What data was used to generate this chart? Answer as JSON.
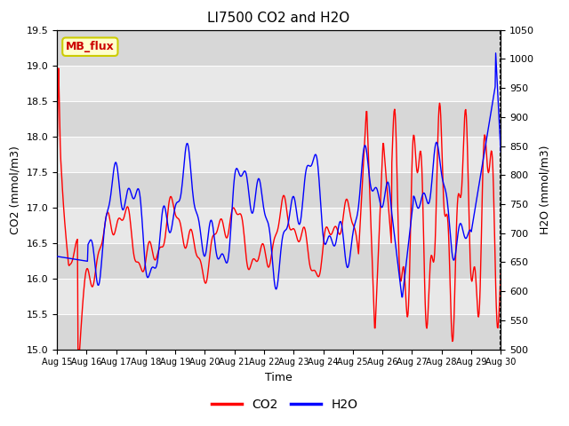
{
  "title": "LI7500 CO2 and H2O",
  "xlabel": "Time",
  "ylabel_left": "CO2 (mmol/m3)",
  "ylabel_right": "H2O (mmol/m3)",
  "ylim_left": [
    15.0,
    19.5
  ],
  "ylim_right": [
    500,
    1050
  ],
  "yticks_left": [
    15.0,
    15.5,
    16.0,
    16.5,
    17.0,
    17.5,
    18.0,
    18.5,
    19.0,
    19.5
  ],
  "yticks_right": [
    500,
    550,
    600,
    650,
    700,
    750,
    800,
    850,
    900,
    950,
    1000,
    1050
  ],
  "xtick_labels": [
    "Aug 15",
    "Aug 16",
    "Aug 17",
    "Aug 18",
    "Aug 19",
    "Aug 20",
    "Aug 21",
    "Aug 22",
    "Aug 23",
    "Aug 24",
    "Aug 25",
    "Aug 26",
    "Aug 27",
    "Aug 28",
    "Aug 29",
    "Aug 30"
  ],
  "co2_color": "#ff0000",
  "h2o_color": "#0000ff",
  "plot_bg": "#e8e8e8",
  "band_color": "#d0d0d0",
  "legend_box_facecolor": "#ffffcc",
  "legend_box_edgecolor": "#cccc00",
  "legend_text": "MB_flux",
  "legend_text_color": "#cc0000",
  "line_width": 1.0,
  "title_fontsize": 11,
  "axis_fontsize": 9,
  "tick_fontsize": 8,
  "legend_fontsize": 10
}
